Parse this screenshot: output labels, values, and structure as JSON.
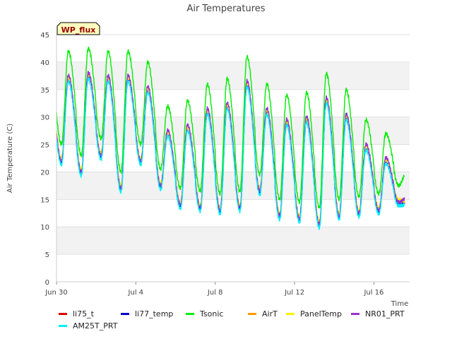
{
  "chart_data": {
    "type": "line",
    "title": "Air Temperatures",
    "xlabel": "Time",
    "ylabel": "Air Temperature (C)",
    "badge": "WP_flux",
    "ylim": [
      0,
      45
    ],
    "yticks": [
      0,
      5,
      10,
      15,
      20,
      25,
      30,
      35,
      40,
      45
    ],
    "xlim_days": [
      0,
      17.8
    ],
    "xticks": [
      {
        "day": 0,
        "label": "Jun 30"
      },
      {
        "day": 4,
        "label": "Jul 4"
      },
      {
        "day": 8,
        "label": "Jul 8"
      },
      {
        "day": 12,
        "label": "Jul 12"
      },
      {
        "day": 16,
        "label": "Jul 16"
      }
    ],
    "grid": "horizontal bands",
    "legend_position": "bottom",
    "daily_extremes": {
      "day": [
        0,
        1,
        2,
        3,
        4,
        5,
        6,
        7,
        8,
        9,
        10,
        11,
        12,
        13,
        14,
        15,
        16,
        17
      ],
      "min": [
        22,
        20,
        23,
        17,
        22,
        17.5,
        14,
        13.5,
        13,
        13.5,
        16.5,
        12,
        11.5,
        10.5,
        12,
        12.5,
        13,
        14.5
      ],
      "max": [
        37,
        37.5,
        37,
        37,
        35,
        27,
        28,
        31,
        32,
        36,
        31,
        29,
        29.5,
        33,
        30,
        24.5,
        22,
        14.5
      ]
    },
    "series": [
      {
        "name": "li75_t",
        "color": "#dd0000",
        "offset_max": 0,
        "offset_min": 0
      },
      {
        "name": "li77_temp",
        "color": "#0000cc",
        "offset_max": 0,
        "offset_min": -0.2
      },
      {
        "name": "Tsonic",
        "color": "#00ee00",
        "offset_max": 5,
        "offset_min": 3
      },
      {
        "name": "AirT",
        "color": "#ff9900",
        "offset_max": 0.3,
        "offset_min": 0.2
      },
      {
        "name": "PanelTemp",
        "color": "#ffee00",
        "offset_max": 0.2,
        "offset_min": 0.4
      },
      {
        "name": "NR01_PRT",
        "color": "#9933cc",
        "offset_max": 0.6,
        "offset_min": 0
      },
      {
        "name": "AM25T_PRT",
        "color": "#00eeff",
        "offset_max": -0.5,
        "offset_min": -0.7
      }
    ]
  }
}
